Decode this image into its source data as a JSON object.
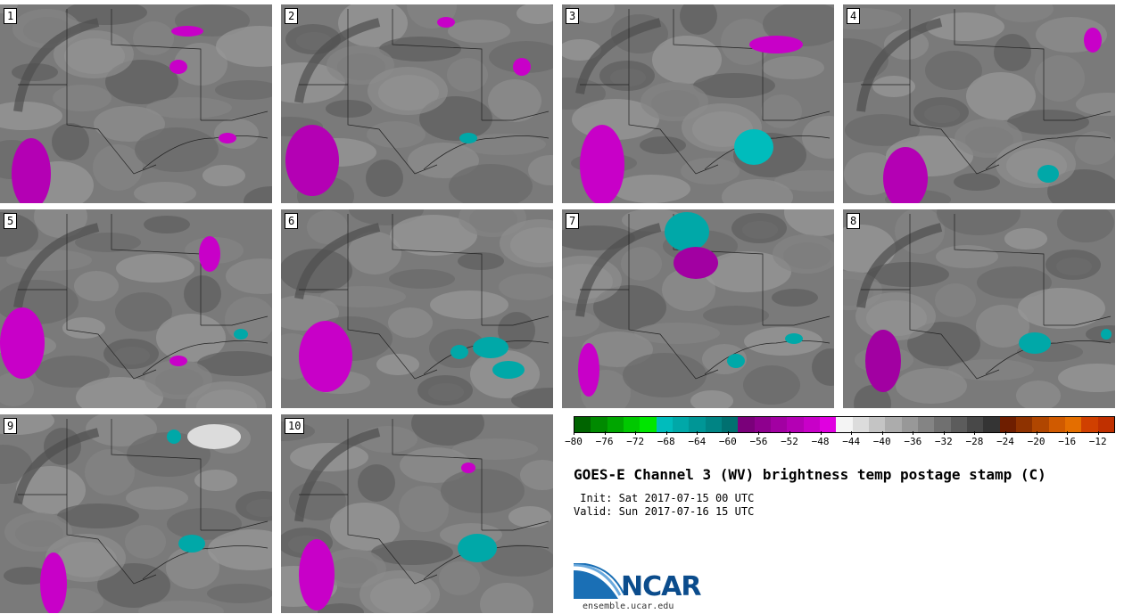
{
  "panels": [
    {
      "label": "1"
    },
    {
      "label": "2"
    },
    {
      "label": "3"
    },
    {
      "label": "4"
    },
    {
      "label": "5"
    },
    {
      "label": "6"
    },
    {
      "label": "7"
    },
    {
      "label": "8"
    },
    {
      "label": "9"
    },
    {
      "label": "10"
    }
  ],
  "colorbar": {
    "colors": [
      "#006400",
      "#008a00",
      "#00a600",
      "#00c800",
      "#00e600",
      "#00bcbc",
      "#00a8a8",
      "#009696",
      "#008484",
      "#007070",
      "#7a007a",
      "#8e008e",
      "#a200a2",
      "#b400b4",
      "#c800c8",
      "#e000e0",
      "#f4f4f4",
      "#dcdcdc",
      "#c4c4c4",
      "#acacac",
      "#989898",
      "#848484",
      "#707070",
      "#5c5c5c",
      "#484848",
      "#343434",
      "#6e1e00",
      "#8e3200",
      "#b04600",
      "#d05a00",
      "#e46e00",
      "#d04000",
      "#c03000"
    ],
    "ticks": [
      "−80",
      "−76",
      "−72",
      "−68",
      "−64",
      "−60",
      "−56",
      "−52",
      "−48",
      "−44",
      "−40",
      "−36",
      "−32",
      "−28",
      "−24",
      "−20",
      "−16",
      "−12"
    ]
  },
  "title": "GOES-E Channel 3 (WV) brightness temp postage stamp (C)",
  "init": " Init: Sat 2017-07-15 00 UTC",
  "valid": "Valid: Sun 2017-07-16 15 UTC",
  "logo_text": "NCAR",
  "site": "ensemble.ucar.edu"
}
